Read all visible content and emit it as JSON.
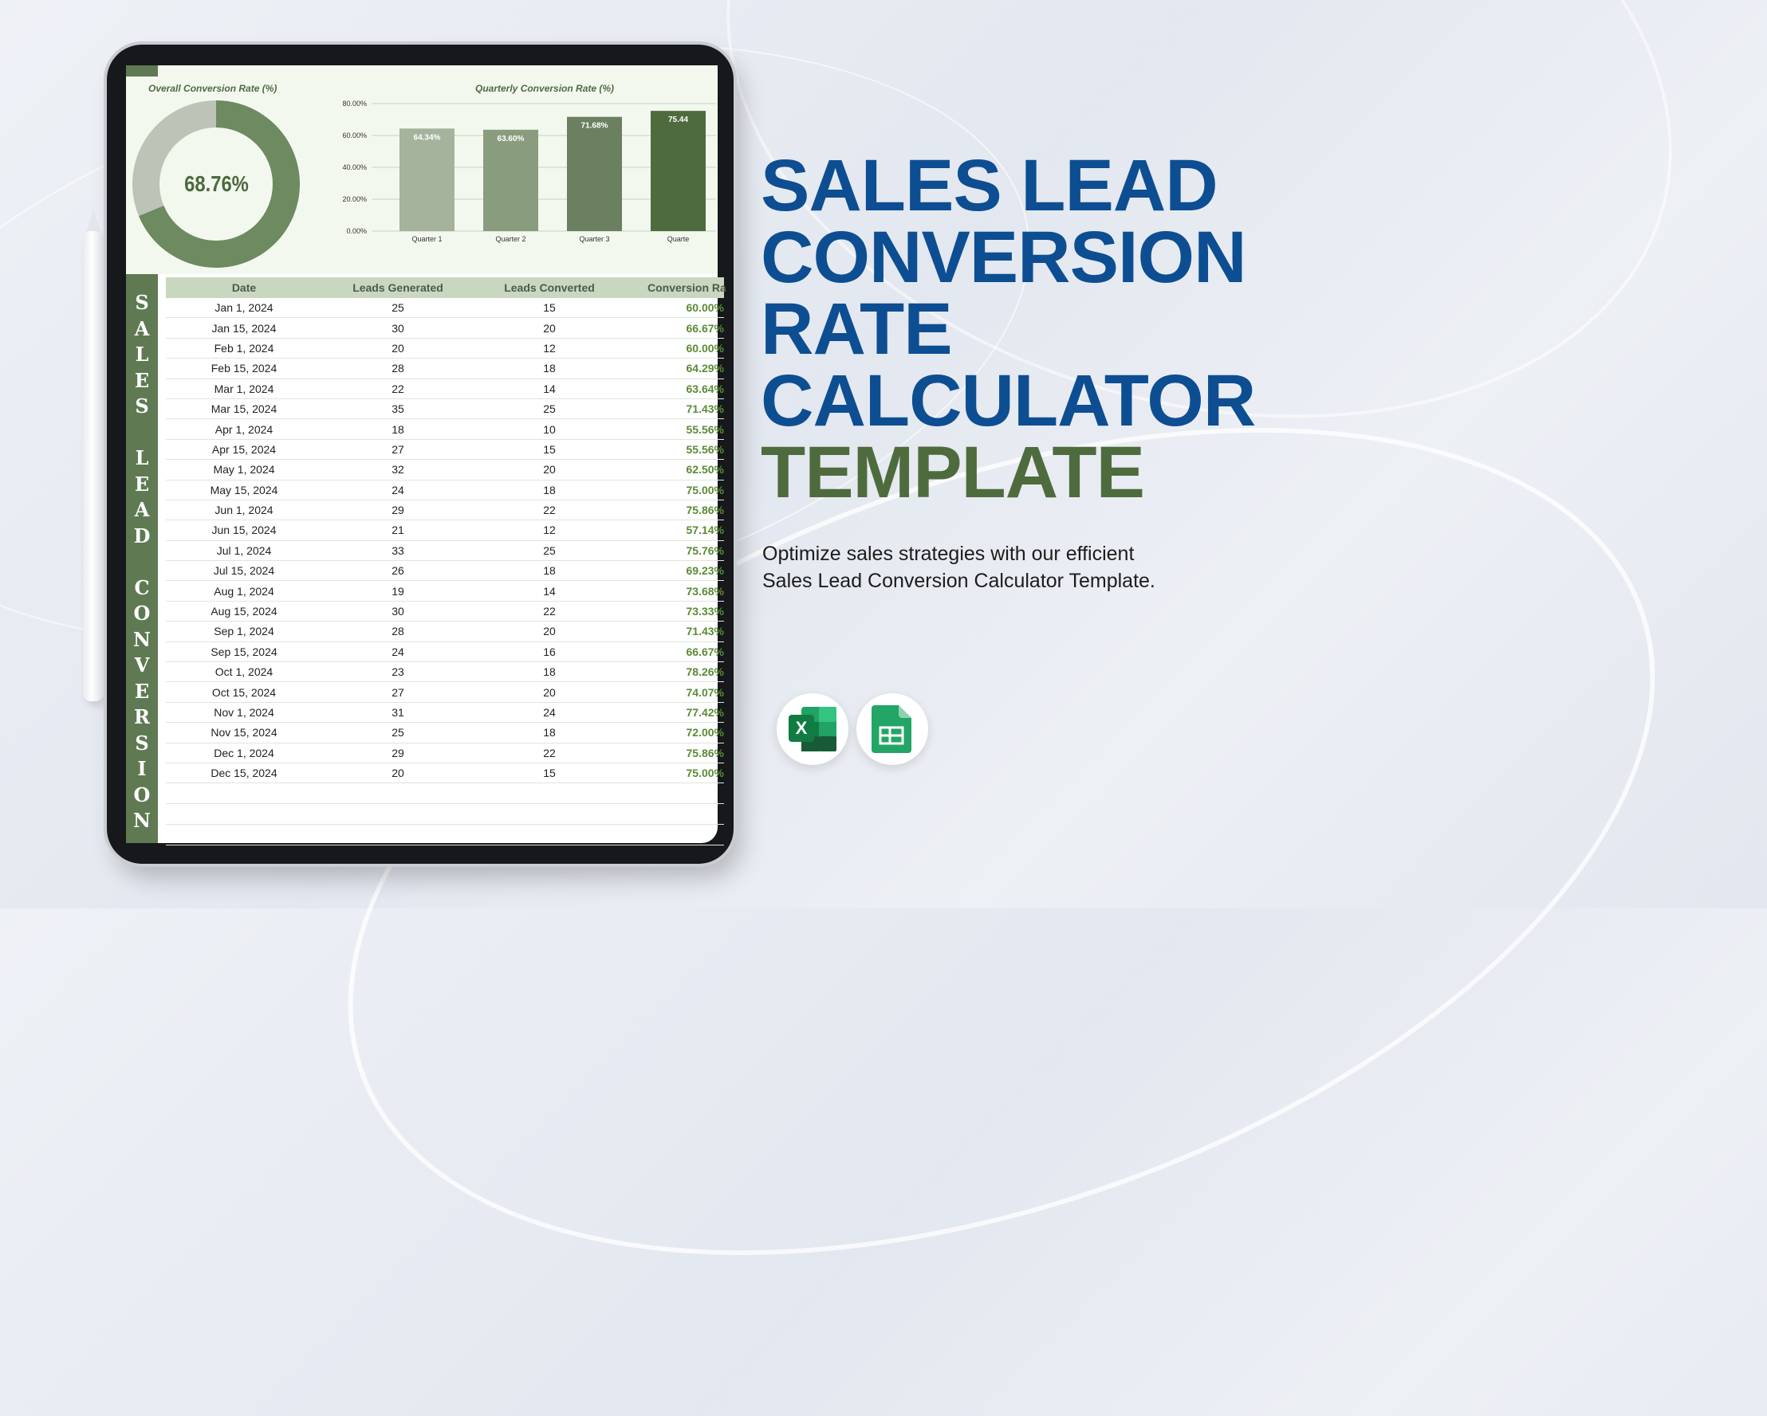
{
  "headline": {
    "line1": "SALES LEAD",
    "line2": "CONVERSION",
    "line3": "RATE",
    "line4": "CALCULATOR",
    "line5": "TEMPLATE"
  },
  "subtitle": {
    "line1": "Optimize sales strategies with our efficient",
    "line2": "Sales Lead Conversion Calculator Template."
  },
  "colors": {
    "headline_blue": "#0d4e92",
    "headline_green": "#4e6b3e",
    "sheet_green": "#5f7a52",
    "rate_green": "#5a8a36"
  },
  "icons": [
    "excel-icon",
    "google-sheets-icon",
    "stylus-pencil"
  ],
  "dashboard": {
    "donut_title": "Overall Conversion Rate (%)",
    "donut_value": "68.76%",
    "donut_fraction": 0.6876,
    "bar_title": "Quarterly Conversion Rate (%)"
  },
  "banner_text": "SALES LEAD CONVERSION",
  "table": {
    "headers": [
      "Date",
      "Leads Generated",
      "Leads Converted",
      "Conversion Ra"
    ],
    "rows": [
      {
        "date": "Jan 1, 2024",
        "generated": "25",
        "converted": "15",
        "rate": "60.00%"
      },
      {
        "date": "Jan 15, 2024",
        "generated": "30",
        "converted": "20",
        "rate": "66.67%"
      },
      {
        "date": "Feb 1, 2024",
        "generated": "20",
        "converted": "12",
        "rate": "60.00%"
      },
      {
        "date": "Feb 15, 2024",
        "generated": "28",
        "converted": "18",
        "rate": "64.29%"
      },
      {
        "date": "Mar 1, 2024",
        "generated": "22",
        "converted": "14",
        "rate": "63.64%"
      },
      {
        "date": "Mar 15, 2024",
        "generated": "35",
        "converted": "25",
        "rate": "71.43%"
      },
      {
        "date": "Apr 1, 2024",
        "generated": "18",
        "converted": "10",
        "rate": "55.56%"
      },
      {
        "date": "Apr 15, 2024",
        "generated": "27",
        "converted": "15",
        "rate": "55.56%"
      },
      {
        "date": "May 1, 2024",
        "generated": "32",
        "converted": "20",
        "rate": "62.50%"
      },
      {
        "date": "May 15, 2024",
        "generated": "24",
        "converted": "18",
        "rate": "75.00%"
      },
      {
        "date": "Jun 1, 2024",
        "generated": "29",
        "converted": "22",
        "rate": "75.86%"
      },
      {
        "date": "Jun 15, 2024",
        "generated": "21",
        "converted": "12",
        "rate": "57.14%"
      },
      {
        "date": "Jul 1, 2024",
        "generated": "33",
        "converted": "25",
        "rate": "75.76%"
      },
      {
        "date": "Jul 15, 2024",
        "generated": "26",
        "converted": "18",
        "rate": "69.23%"
      },
      {
        "date": "Aug 1, 2024",
        "generated": "19",
        "converted": "14",
        "rate": "73.68%"
      },
      {
        "date": "Aug 15, 2024",
        "generated": "30",
        "converted": "22",
        "rate": "73.33%"
      },
      {
        "date": "Sep 1, 2024",
        "generated": "28",
        "converted": "20",
        "rate": "71.43%"
      },
      {
        "date": "Sep 15, 2024",
        "generated": "24",
        "converted": "16",
        "rate": "66.67%"
      },
      {
        "date": "Oct 1, 2024",
        "generated": "23",
        "converted": "18",
        "rate": "78.26%"
      },
      {
        "date": "Oct 15, 2024",
        "generated": "27",
        "converted": "20",
        "rate": "74.07%"
      },
      {
        "date": "Nov 1, 2024",
        "generated": "31",
        "converted": "24",
        "rate": "77.42%"
      },
      {
        "date": "Nov 15, 2024",
        "generated": "25",
        "converted": "18",
        "rate": "72.00%"
      },
      {
        "date": "Dec 1, 2024",
        "generated": "29",
        "converted": "22",
        "rate": "75.86%"
      },
      {
        "date": "Dec 15, 2024",
        "generated": "20",
        "converted": "15",
        "rate": "75.00%"
      }
    ]
  },
  "chart_data": {
    "type": "bar",
    "title": "Quarterly Conversion Rate (%)",
    "categories": [
      "Quarter 1",
      "Quarter 2",
      "Quarter 3",
      "Quarte"
    ],
    "values": [
      64.34,
      63.6,
      71.68,
      75.44
    ],
    "data_labels": [
      "64.34%",
      "63.60%",
      "71.68%",
      "75.44"
    ],
    "ylim": [
      0,
      80
    ],
    "yticks": [
      "0.00%",
      "20.00%",
      "40.00%",
      "60.00%",
      "80.00%"
    ],
    "colors": [
      "#a5b29c",
      "#8a9c7e",
      "#6b8060",
      "#4e6b3e"
    ],
    "grid": true,
    "xlabel": "",
    "ylabel": ""
  }
}
